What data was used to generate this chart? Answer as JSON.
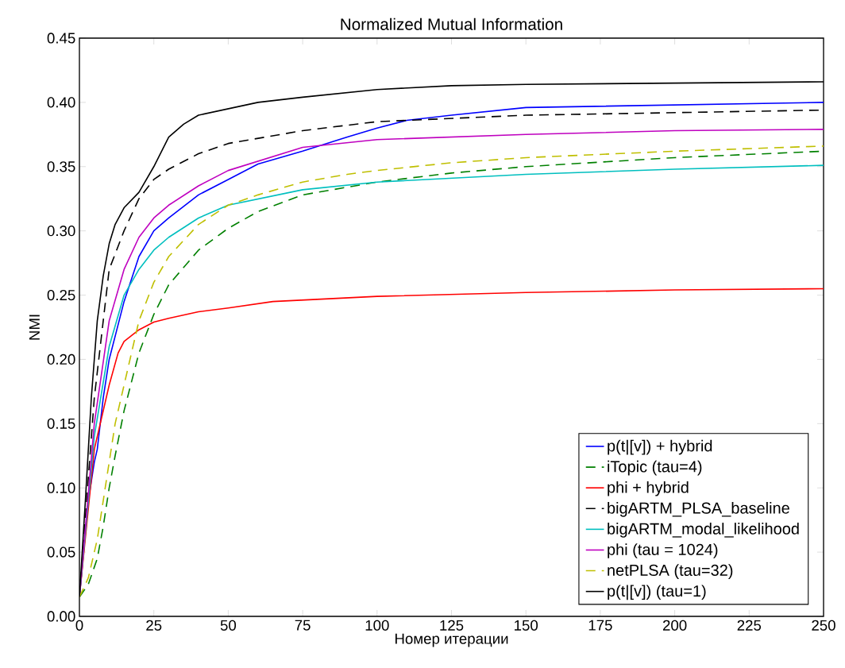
{
  "chart_data": {
    "type": "line",
    "title": "Normalized Mutual Information",
    "xlabel": "Номер итерации",
    "ylabel": "NMI",
    "xlim": [
      0,
      250
    ],
    "ylim": [
      0,
      0.45
    ],
    "xticks": [
      0,
      25,
      50,
      75,
      100,
      125,
      150,
      175,
      200,
      225,
      250
    ],
    "yticks": [
      {
        "value": 0,
        "label": "0.00"
      },
      {
        "value": 0.05,
        "label": "0.05"
      },
      {
        "value": 0.1,
        "label": "0.10"
      },
      {
        "value": 0.15,
        "label": "0.15"
      },
      {
        "value": 0.2,
        "label": "0.20"
      },
      {
        "value": 0.25,
        "label": "0.25"
      },
      {
        "value": 0.3,
        "label": "0.30"
      },
      {
        "value": 0.35,
        "label": "0.35"
      },
      {
        "value": 0.4,
        "label": "0.40"
      },
      {
        "value": 0.45,
        "label": "0.45"
      }
    ],
    "grid": false,
    "legend": "bottom right",
    "marker": "none",
    "series": [
      {
        "name": "p(t|[v]) + hybrid",
        "color": "#0000ff",
        "line_style": "solid",
        "x": [
          0,
          3,
          5,
          6,
          8,
          10,
          15,
          20,
          25,
          30,
          40,
          50,
          60,
          75,
          90,
          100,
          110,
          125,
          150,
          200,
          250
        ],
        "values": [
          0.015,
          0.09,
          0.12,
          0.13,
          0.17,
          0.2,
          0.245,
          0.28,
          0.3,
          0.31,
          0.328,
          0.34,
          0.352,
          0.362,
          0.373,
          0.38,
          0.386,
          0.39,
          0.396,
          0.398,
          0.4
        ]
      },
      {
        "name": "iTopic (tau=4)",
        "color": "#008000",
        "line_style": "dashed",
        "x": [
          0,
          3,
          6,
          8,
          10,
          12,
          15,
          20,
          25,
          30,
          40,
          50,
          60,
          75,
          100,
          125,
          150,
          200,
          250
        ],
        "values": [
          0.015,
          0.025,
          0.045,
          0.07,
          0.1,
          0.125,
          0.16,
          0.205,
          0.235,
          0.258,
          0.285,
          0.302,
          0.315,
          0.328,
          0.338,
          0.345,
          0.35,
          0.357,
          0.362
        ]
      },
      {
        "name": "phi + hybrid",
        "color": "#ff0000",
        "line_style": "solid",
        "x": [
          0,
          5,
          10,
          13,
          15,
          20,
          25,
          30,
          40,
          50,
          65,
          100,
          150,
          200,
          250
        ],
        "values": [
          0.015,
          0.13,
          0.18,
          0.205,
          0.214,
          0.223,
          0.229,
          0.232,
          0.237,
          0.24,
          0.245,
          0.249,
          0.252,
          0.254,
          0.255
        ]
      },
      {
        "name": "bigARTM_PLSA_baseline",
        "color": "#000000",
        "line_style": "dashed",
        "x": [
          0,
          5,
          10,
          15,
          20,
          25,
          30,
          40,
          50,
          75,
          100,
          150,
          200,
          250
        ],
        "values": [
          0.015,
          0.17,
          0.27,
          0.3,
          0.325,
          0.34,
          0.348,
          0.36,
          0.368,
          0.378,
          0.385,
          0.39,
          0.392,
          0.394
        ]
      },
      {
        "name": "bigARTM_modal_likelihood",
        "color": "#00bfbf",
        "line_style": "solid",
        "x": [
          0,
          5,
          10,
          15,
          20,
          25,
          30,
          40,
          50,
          75,
          100,
          150,
          200,
          250
        ],
        "values": [
          0.015,
          0.14,
          0.21,
          0.25,
          0.27,
          0.285,
          0.295,
          0.31,
          0.32,
          0.332,
          0.338,
          0.344,
          0.348,
          0.351
        ]
      },
      {
        "name": "phi (tau = 1024)",
        "color": "#bf00bf",
        "line_style": "solid",
        "x": [
          0,
          5,
          10,
          15,
          20,
          25,
          30,
          40,
          50,
          75,
          100,
          150,
          200,
          250
        ],
        "values": [
          0.015,
          0.15,
          0.23,
          0.27,
          0.295,
          0.31,
          0.32,
          0.335,
          0.347,
          0.365,
          0.371,
          0.375,
          0.378,
          0.379
        ]
      },
      {
        "name": "netPLSA (tau=32)",
        "color": "#bfbf00",
        "line_style": "dashed",
        "x": [
          0,
          3,
          6,
          8,
          10,
          12,
          15,
          20,
          25,
          30,
          40,
          50,
          60,
          75,
          90,
          100,
          125,
          150,
          200,
          250
        ],
        "values": [
          0.015,
          0.03,
          0.06,
          0.09,
          0.12,
          0.15,
          0.18,
          0.23,
          0.26,
          0.28,
          0.305,
          0.32,
          0.328,
          0.338,
          0.344,
          0.347,
          0.353,
          0.357,
          0.362,
          0.366
        ]
      },
      {
        "name": "p(t|[v]) (tau=1)",
        "color": "#000000",
        "line_style": "solid",
        "x": [
          0,
          2,
          4,
          6,
          8,
          10,
          12,
          15,
          20,
          25,
          30,
          35,
          40,
          50,
          60,
          75,
          100,
          125,
          150,
          200,
          250
        ],
        "values": [
          0.015,
          0.09,
          0.17,
          0.23,
          0.265,
          0.29,
          0.305,
          0.318,
          0.33,
          0.35,
          0.373,
          0.383,
          0.39,
          0.395,
          0.4,
          0.404,
          0.41,
          0.413,
          0.414,
          0.415,
          0.416
        ]
      }
    ]
  }
}
